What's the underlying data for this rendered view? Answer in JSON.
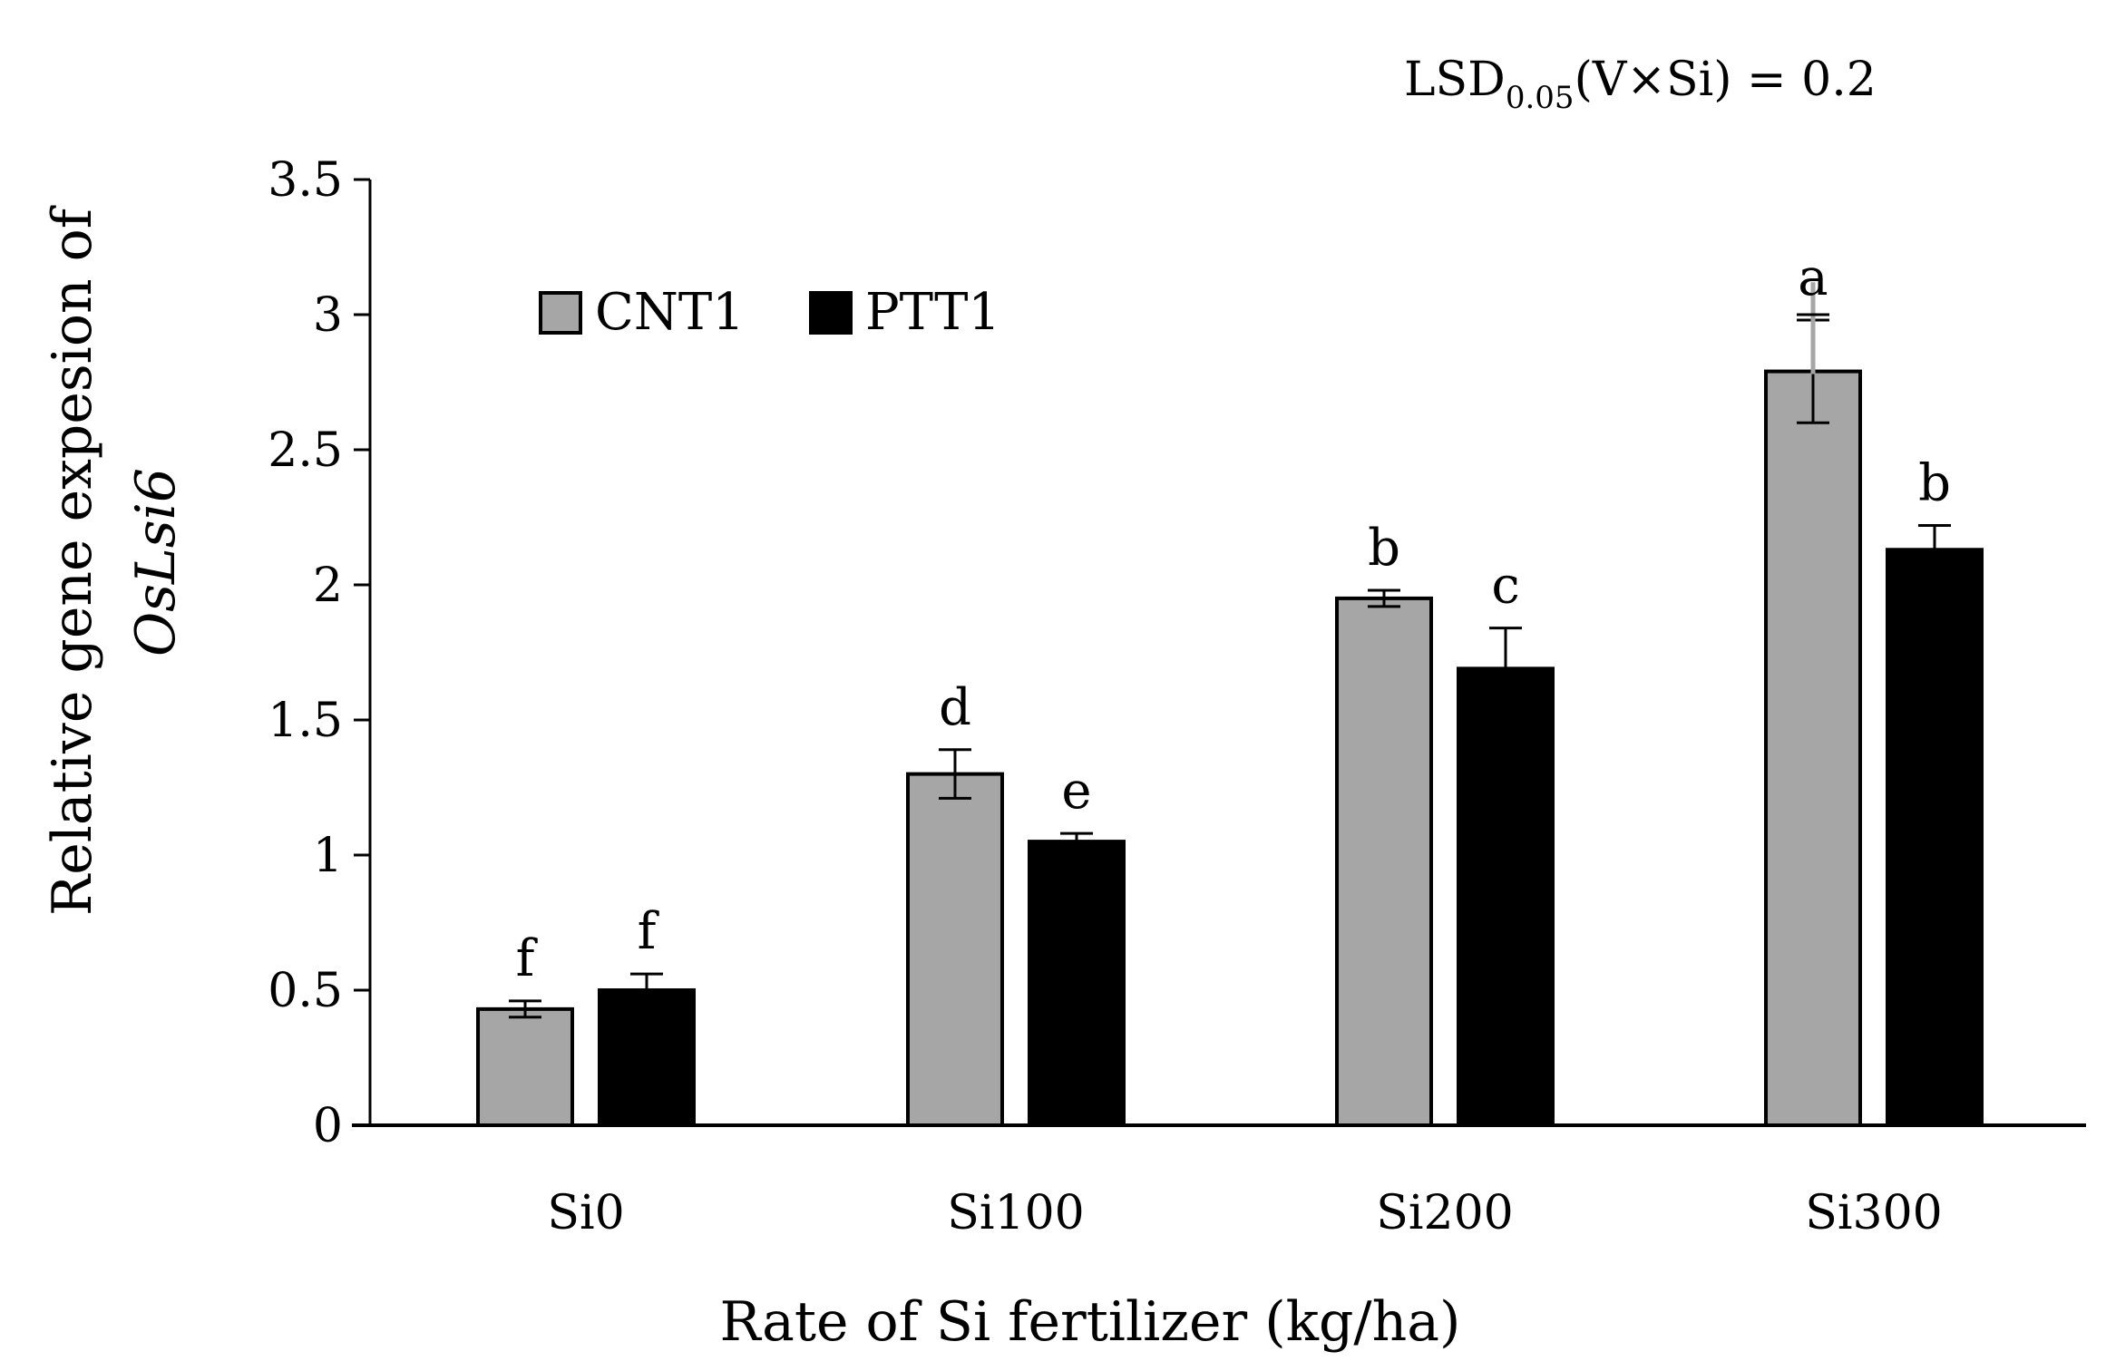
{
  "chart_data": {
    "type": "bar",
    "title": "",
    "annotation": {
      "prefix": "LSD",
      "subscript": "0.05",
      "suffix": "(V×Si) = 0.2"
    },
    "xlabel": "Rate of Si fertilizer (kg/ha)",
    "ylabel_line1": "Relative gene expesion of",
    "ylabel_line2": "OsLsi6",
    "ylim": [
      0,
      3.5
    ],
    "yticks": [
      {
        "value": 0,
        "label": "0"
      },
      {
        "value": 0.5,
        "label": "0.5"
      },
      {
        "value": 1,
        "label": "1"
      },
      {
        "value": 1.5,
        "label": "1.5"
      },
      {
        "value": 2,
        "label": "2"
      },
      {
        "value": 2.5,
        "label": "2.5"
      },
      {
        "value": 3,
        "label": "3"
      },
      {
        "value": 3.5,
        "label": "3.5"
      }
    ],
    "categories": [
      "Si0",
      "Si100",
      "Si200",
      "Si300"
    ],
    "series": [
      {
        "name": "CNT1",
        "color": "#a6a6a6",
        "values": [
          0.43,
          1.3,
          1.95,
          2.79
        ],
        "errors": [
          0.03,
          0.09,
          0.03,
          0.19
        ],
        "letters": [
          "f",
          "d",
          "b",
          "a"
        ]
      },
      {
        "name": "PTT1",
        "color": "#000000",
        "values": [
          0.5,
          1.05,
          1.69,
          2.13
        ],
        "errors": [
          0.06,
          0.03,
          0.15,
          0.09
        ],
        "letters": [
          "f",
          "e",
          "c",
          "b"
        ]
      }
    ],
    "legend_position": "top-left",
    "grid": false,
    "lsd_bar": {
      "category": "Si300",
      "value": 2.79,
      "half_length": 0.2,
      "color": "#a6a6a6"
    }
  }
}
